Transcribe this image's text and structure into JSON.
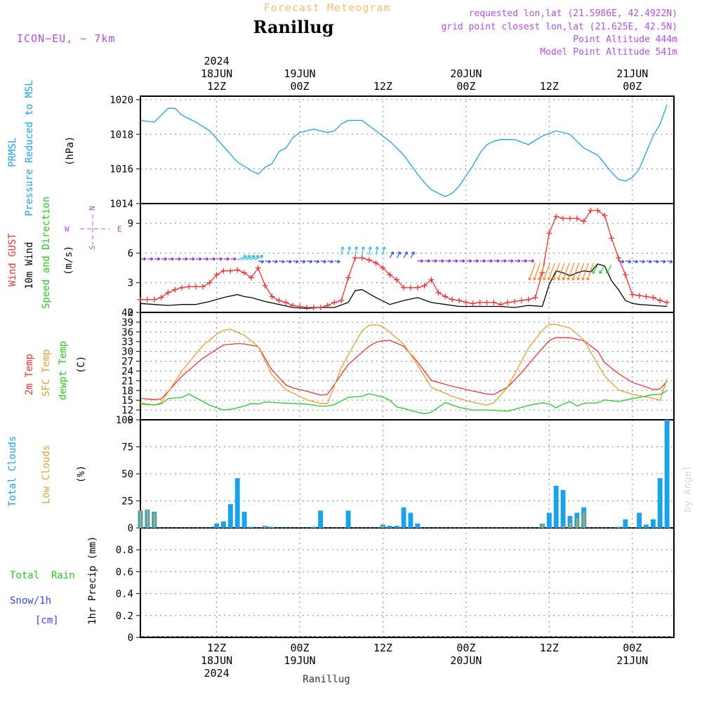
{
  "header": {
    "product": "Forecast Meteogram",
    "location": "Ranillug",
    "model": "ICON−EU, ~ 7km",
    "requested": "requested lon,lat (21.5986E, 42.4922N)",
    "gridpoint": "grid point closest lon,lat (21.625E, 42.5N)",
    "point_alt": "Point Altitude 444m",
    "model_alt": "Model Point Altitude 541m",
    "credit": "by Angel",
    "footer_location": "Ranillug"
  },
  "time_axis": {
    "start_hour": 0,
    "end_hour": 77,
    "top_labels": [
      {
        "h": 11,
        "lines": [
          "2024",
          "18JUN",
          "12Z"
        ]
      },
      {
        "h": 23,
        "lines": [
          "19JUN",
          "00Z"
        ]
      },
      {
        "h": 35,
        "lines": [
          "12Z"
        ]
      },
      {
        "h": 47,
        "lines": [
          "20JUN",
          "00Z"
        ]
      },
      {
        "h": 59,
        "lines": [
          "12Z"
        ]
      },
      {
        "h": 71,
        "lines": [
          "21JUN",
          "00Z"
        ]
      }
    ],
    "bottom_labels": [
      {
        "h": 11,
        "lines": [
          "12Z",
          "18JUN",
          "2024"
        ]
      },
      {
        "h": 23,
        "lines": [
          "00Z",
          "19JUN"
        ]
      },
      {
        "h": 35,
        "lines": [
          "12Z"
        ]
      },
      {
        "h": 47,
        "lines": [
          "00Z",
          "20JUN"
        ]
      },
      {
        "h": 59,
        "lines": [
          "12Z"
        ]
      },
      {
        "h": 71,
        "lines": [
          "00Z",
          "21JUN"
        ]
      }
    ]
  },
  "colors": {
    "pressure": "#1aa3e8",
    "gust": "#ee3333",
    "wind": "#000000",
    "temp2m": "#ee3333",
    "sfc": "#e0a030",
    "dew": "#22cc22",
    "total_cloud": "#1aa3e8",
    "low_cloud": "#e0a030",
    "rain": "#22cc22",
    "snow": "#3344ee",
    "meta": "#b050e0",
    "product": "#f0c070"
  },
  "panels": {
    "pressure": {
      "labels": [
        "PRMSL",
        "Pressure Reduced to MSL",
        "(hPa)"
      ],
      "ticks": [
        "1020",
        "1018",
        "1016",
        "1014"
      ]
    },
    "wind": {
      "labels": [
        "Wind GUST",
        "10m Wind",
        "Speed and Direction",
        "(m/s)"
      ],
      "ticks": [
        "9",
        "6",
        "3",
        "0"
      ],
      "compass": {
        "n": "N",
        "s": "S",
        "e": "E",
        "w": "W"
      }
    },
    "temp": {
      "labels": [
        "2m Temp",
        "SFC Temp",
        "dewpt Temp",
        "(C)"
      ],
      "ticks": [
        "42",
        "39",
        "36",
        "33",
        "30",
        "27",
        "24",
        "21",
        "18",
        "15",
        "12",
        "9"
      ]
    },
    "cloud": {
      "labels": [
        "Total Clouds",
        "Low Clouds",
        "(%)"
      ],
      "ticks": [
        "100",
        "75",
        "50",
        "25",
        "0"
      ]
    },
    "precip": {
      "labels": [
        "Total  Rain",
        "Snow/1h",
        "[cm]",
        "1hr Precip (mm)"
      ],
      "ticks": [
        "0.8",
        "0.6",
        "0.4",
        "0.2",
        "0"
      ]
    }
  },
  "chart_data": [
    {
      "type": "line",
      "ylim": [
        1014,
        1020.2
      ],
      "series": [
        {
          "name": "PRMSL",
          "x": [
            0,
            2,
            4,
            5,
            6,
            8,
            10,
            12,
            14,
            16,
            17,
            18,
            19,
            20,
            21,
            22,
            23,
            25,
            27,
            28,
            29,
            30,
            32,
            34,
            36,
            38,
            40,
            41,
            42,
            44,
            45,
            46,
            48,
            49,
            50,
            51,
            52,
            54,
            56,
            58,
            60,
            62,
            63,
            64,
            66,
            67,
            68,
            69,
            70,
            71,
            72,
            74,
            75,
            76
          ],
          "values": [
            1018.8,
            1018.7,
            1019.5,
            1019.5,
            1019.1,
            1018.7,
            1018.2,
            1017.3,
            1016.4,
            1015.9,
            1015.7,
            1016.1,
            1016.3,
            1017.0,
            1017.2,
            1017.8,
            1018.1,
            1018.3,
            1018.1,
            1018.2,
            1018.6,
            1018.8,
            1018.8,
            1018.2,
            1017.6,
            1016.8,
            1015.7,
            1015.2,
            1014.8,
            1014.4,
            1014.6,
            1015.0,
            1016.2,
            1016.9,
            1017.4,
            1017.6,
            1017.7,
            1017.7,
            1017.4,
            1017.9,
            1018.2,
            1018.0,
            1017.6,
            1017.2,
            1016.8,
            1016.3,
            1015.8,
            1015.4,
            1015.3,
            1015.5,
            1016.0,
            1017.9,
            1018.6,
            1019.7
          ]
        }
      ]
    },
    {
      "type": "line",
      "ylim": [
        0,
        11
      ],
      "series": [
        {
          "name": "Wind GUST",
          "x": [
            0,
            1,
            2,
            3,
            4,
            5,
            6,
            7,
            8,
            9,
            10,
            11,
            12,
            13,
            14,
            15,
            16,
            17,
            18,
            19,
            20,
            21,
            22,
            23,
            24,
            25,
            26,
            27,
            28,
            29,
            30,
            31,
            32,
            33,
            34,
            35,
            36,
            37,
            38,
            39,
            40,
            41,
            42,
            43,
            44,
            45,
            46,
            47,
            48,
            49,
            50,
            51,
            52,
            53,
            54,
            55,
            56,
            57,
            58,
            59,
            60,
            61,
            62,
            63,
            64,
            65,
            66,
            67,
            68,
            69,
            70,
            71,
            72,
            73,
            74,
            75,
            76
          ],
          "values": [
            1.3,
            1.3,
            1.3,
            1.5,
            2.0,
            2.3,
            2.5,
            2.6,
            2.6,
            2.6,
            3.0,
            3.8,
            4.2,
            4.2,
            4.3,
            4.0,
            3.5,
            4.5,
            2.7,
            1.6,
            1.2,
            1.0,
            0.7,
            0.6,
            0.5,
            0.5,
            0.5,
            0.7,
            1.0,
            1.2,
            3.5,
            5.5,
            5.5,
            5.3,
            5.0,
            4.5,
            3.8,
            3.3,
            2.5,
            2.5,
            2.5,
            2.7,
            3.3,
            2.0,
            1.6,
            1.3,
            1.2,
            1.0,
            0.9,
            1.0,
            1.0,
            1.0,
            0.8,
            1.0,
            1.1,
            1.2,
            1.3,
            1.5,
            4.0,
            8.0,
            9.7,
            9.5,
            9.5,
            9.5,
            9.2,
            10.3,
            10.3,
            9.8,
            7.5,
            5.5,
            3.8,
            1.8,
            1.7,
            1.6,
            1.5,
            1.2,
            1.0
          ]
        },
        {
          "name": "10m Wind",
          "x": [
            0,
            2,
            4,
            6,
            8,
            10,
            12,
            14,
            15,
            16,
            18,
            20,
            22,
            24,
            26,
            28,
            30,
            31,
            32,
            34,
            36,
            38,
            40,
            42,
            44,
            46,
            48,
            50,
            52,
            54,
            56,
            58,
            59,
            60,
            61,
            62,
            63,
            64,
            65,
            66,
            67,
            68,
            69,
            70,
            71,
            72,
            74,
            76
          ],
          "values": [
            0.9,
            0.8,
            0.7,
            0.8,
            0.8,
            1.1,
            1.5,
            1.8,
            1.6,
            1.5,
            1.1,
            0.8,
            0.5,
            0.4,
            0.5,
            0.5,
            1.0,
            2.2,
            2.3,
            1.5,
            0.8,
            1.2,
            1.5,
            1.0,
            0.8,
            0.6,
            0.6,
            0.6,
            0.6,
            0.5,
            0.7,
            0.6,
            2.8,
            4.2,
            4.0,
            3.7,
            4.0,
            4.2,
            4.1,
            4.9,
            4.7,
            3.2,
            2.3,
            1.2,
            0.9,
            0.8,
            0.7,
            0.6
          ]
        }
      ]
    },
    {
      "type": "line",
      "ylim": [
        9,
        42
      ],
      "series": [
        {
          "name": "2m Temp",
          "x": [
            0,
            2,
            3,
            6,
            9,
            12,
            14,
            15,
            17,
            19,
            21,
            22,
            24,
            26,
            27,
            30,
            33,
            34,
            35,
            36,
            38,
            40,
            42,
            45,
            47,
            49,
            50,
            51,
            53,
            55,
            57,
            59,
            60,
            62,
            64,
            66,
            67,
            69,
            71,
            73,
            74,
            75,
            76
          ],
          "values": [
            15.6,
            15.2,
            15.4,
            22.4,
            27.9,
            32.0,
            32.4,
            32.3,
            31.5,
            24.3,
            19.7,
            18.8,
            17.8,
            16.6,
            16.8,
            26.0,
            31.6,
            32.8,
            33.3,
            33.4,
            31.6,
            26.8,
            21.1,
            19.3,
            18.3,
            17.4,
            16.9,
            16.8,
            19.0,
            23.5,
            28.5,
            33.3,
            34.3,
            34.2,
            33.3,
            30.1,
            26.6,
            23.2,
            20.5,
            19.1,
            18.3,
            18.5,
            20.8
          ]
        },
        {
          "name": "SFC Temp",
          "x": [
            0,
            2,
            3,
            6,
            9,
            11,
            12,
            13,
            15,
            17,
            19,
            21,
            24,
            26,
            27,
            29,
            31,
            32,
            33,
            34,
            35,
            36,
            38,
            40,
            42,
            45,
            47,
            49,
            50,
            51,
            53,
            56,
            58,
            59,
            60,
            62,
            64,
            66,
            67,
            69,
            71,
            73,
            74,
            75,
            76
          ],
          "values": [
            14.2,
            13.5,
            14.3,
            24.0,
            31.8,
            35.3,
            36.5,
            36.8,
            35.0,
            31.5,
            22.8,
            18.2,
            15.2,
            14.0,
            14.0,
            25.0,
            32.8,
            36.3,
            38.0,
            38.2,
            37.6,
            35.9,
            32.3,
            25.8,
            19.0,
            16.2,
            14.9,
            13.9,
            13.5,
            14.2,
            19.0,
            31.0,
            36.5,
            38.3,
            38.3,
            37.2,
            33.5,
            26.1,
            22.5,
            18.2,
            16.8,
            16.0,
            15.6,
            15.0,
            21.6
          ]
        },
        {
          "name": "dewpt Temp",
          "x": [
            0,
            2,
            3,
            4,
            6,
            7,
            8,
            10,
            12,
            13,
            15,
            16,
            17,
            18,
            20,
            24,
            26,
            27,
            28,
            30,
            32,
            33,
            35,
            36,
            37,
            38,
            39,
            40,
            41,
            42,
            44,
            46,
            48,
            50,
            52,
            53,
            56,
            57,
            58,
            59,
            60,
            61,
            62,
            63,
            64,
            66,
            67,
            69,
            71,
            73,
            74,
            75,
            76
          ],
          "values": [
            13.8,
            13.6,
            13.9,
            15.5,
            15.9,
            16.9,
            15.8,
            13.5,
            12.0,
            12.2,
            13.2,
            14.0,
            13.8,
            14.5,
            14.2,
            13.8,
            13.2,
            13.2,
            13.7,
            15.9,
            16.2,
            17.0,
            16.0,
            15.0,
            12.9,
            12.5,
            11.9,
            11.3,
            10.9,
            11.3,
            14.3,
            12.8,
            12.0,
            12.0,
            11.8,
            11.6,
            13.4,
            13.8,
            14.2,
            13.9,
            12.7,
            13.8,
            14.6,
            13.2,
            14.1,
            14.2,
            15.1,
            14.6,
            15.5,
            16.3,
            16.7,
            16.8,
            17.9
          ]
        }
      ]
    },
    {
      "type": "bar",
      "ylim": [
        0,
        100
      ],
      "series": [
        {
          "name": "Total Clouds",
          "x": [
            0,
            1,
            2,
            11,
            12,
            13,
            14,
            15,
            16,
            18,
            19,
            25,
            26,
            30,
            35,
            36,
            37,
            38,
            39,
            40,
            58,
            59,
            60,
            61,
            62,
            63,
            64,
            69,
            70,
            72,
            73,
            74,
            75,
            76
          ],
          "values": [
            16,
            17,
            15,
            4,
            6,
            22,
            46,
            15,
            1,
            2,
            1,
            1,
            16,
            16,
            3,
            2,
            2,
            19,
            14,
            4,
            4,
            14,
            39,
            35,
            11,
            14,
            19,
            1,
            8,
            14,
            3,
            8,
            46,
            100
          ]
        },
        {
          "name": "Low Clouds",
          "x": [
            0,
            1,
            2,
            18,
            35,
            58,
            61,
            62,
            63,
            64
          ],
          "values": [
            16,
            17,
            14,
            2,
            2,
            4,
            2,
            5,
            9,
            14
          ]
        }
      ]
    },
    {
      "type": "bar",
      "ylim": [
        0,
        1
      ],
      "series": [
        {
          "name": "Total Rain",
          "values": [
            0
          ]
        },
        {
          "name": "Snow/1h",
          "values": [
            0
          ]
        }
      ]
    }
  ]
}
